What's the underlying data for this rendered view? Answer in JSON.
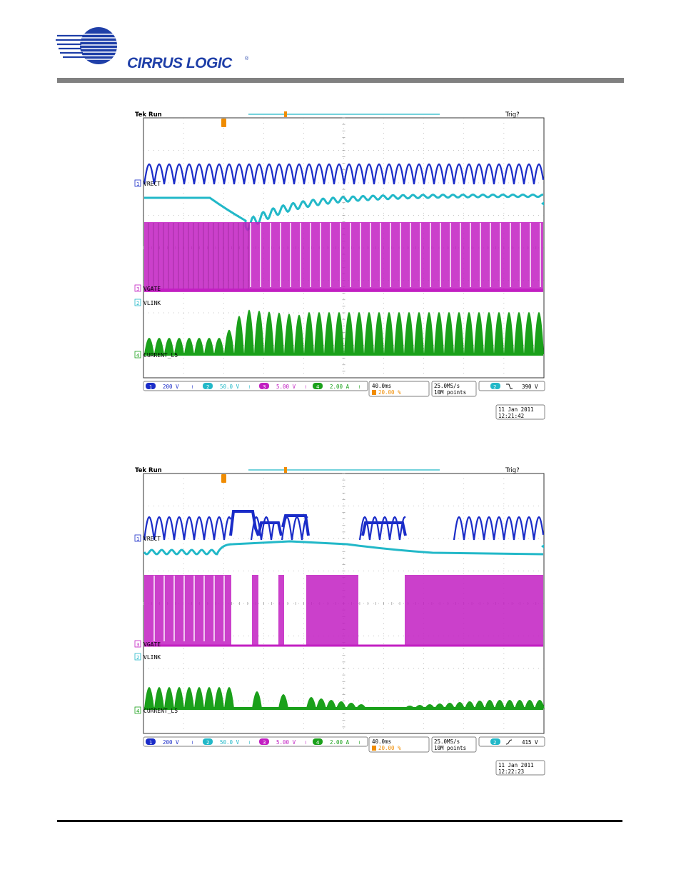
{
  "brand": {
    "name": "CIRRUS LOGIC",
    "registered": "®"
  },
  "colors": {
    "ch1": "#1a2cc8",
    "ch2": "#22b8c8",
    "ch3": "#c21fc2",
    "ch4": "#1aa01a",
    "trigger": "#f08c00",
    "grid": "#888888"
  },
  "scopes": [
    {
      "status_left": "Tek Run",
      "status_right": "Trig?",
      "labels": {
        "ch1": "VRECT",
        "ch3": "VGATE",
        "ch2": "VLINK",
        "ch4": "CURRENT_L5"
      },
      "ch_nums": [
        "1",
        "2",
        "3",
        "4"
      ],
      "scales": {
        "ch1": "200 V",
        "ch2": "50.0 V",
        "ch3": "5.00 V",
        "ch4": "2.00 A"
      },
      "timebase": "40.0ms",
      "trigger_pos": "20.00 %",
      "sample_rate": "25.0MS/s",
      "record": "10M points",
      "trigger_ch": "2",
      "trigger_level": "390 V",
      "date": "11 Jan  2011",
      "time": "12:21:42"
    },
    {
      "status_left": "Tek Run",
      "status_right": "Trig?",
      "labels": {
        "ch1": "VRECT",
        "ch3": "VGATE",
        "ch2": "VLINK",
        "ch4": "CURRENT_L5"
      },
      "ch_nums": [
        "1",
        "2",
        "3",
        "4"
      ],
      "scales": {
        "ch1": "200 V",
        "ch2": "50.0 V",
        "ch3": "5.00 V",
        "ch4": "2.00 A"
      },
      "timebase": "40.0ms",
      "trigger_pos": "20.00 %",
      "sample_rate": "25.0MS/s",
      "record": "10M points",
      "trigger_ch": "2",
      "trigger_level": "415 V",
      "date": "11 Jan  2011",
      "time": "12:22:23"
    }
  ]
}
